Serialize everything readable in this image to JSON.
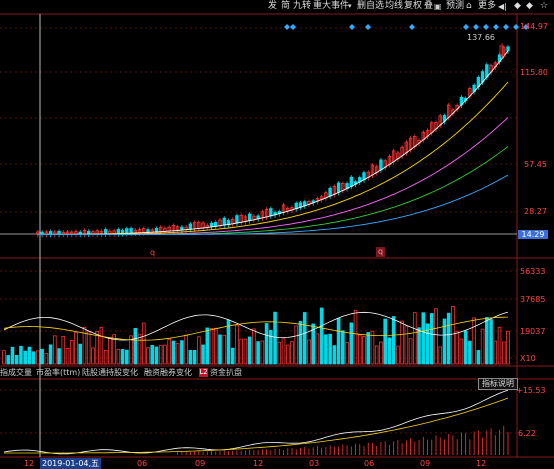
{
  "toolbar": {
    "items": [
      "发",
      "简",
      "九转",
      "重大事件",
      "删自选",
      "均线",
      "复权",
      "叠",
      "预测",
      "更多"
    ],
    "arrow_glyph": "▾",
    "star_glyph": "☆",
    "lock_glyph": "🔒",
    "sound_glyph": "◀|"
  },
  "price_axis": {
    "labels": [
      "144.97",
      "115.80",
      "57.45",
      "28.27"
    ],
    "current_price": "14.29",
    "max_price_marker": "137.66"
  },
  "volume_axis": {
    "labels": [
      "56333",
      "37685",
      "19037",
      "X10"
    ]
  },
  "indicator_axis": {
    "labels": [
      "15.53",
      "6.22"
    ],
    "button_label": "指标说明"
  },
  "tabs": {
    "items": [
      "指成交量",
      "市盈率(ttm)",
      "陆股通持股变化",
      "融资融券变化",
      "资金扒盘"
    ],
    "badge": "L2"
  },
  "markers": {
    "q1": "q",
    "q2": "q"
  },
  "xaxis": {
    "labels": [
      "12",
      "06",
      "09",
      "12",
      "03",
      "06",
      "09",
      "12"
    ],
    "cursor_date": "2019-01-04,五"
  },
  "colors": {
    "up": "#ff3333",
    "down": "#00d8e8",
    "accent_diamond": "#33aaff"
  }
}
